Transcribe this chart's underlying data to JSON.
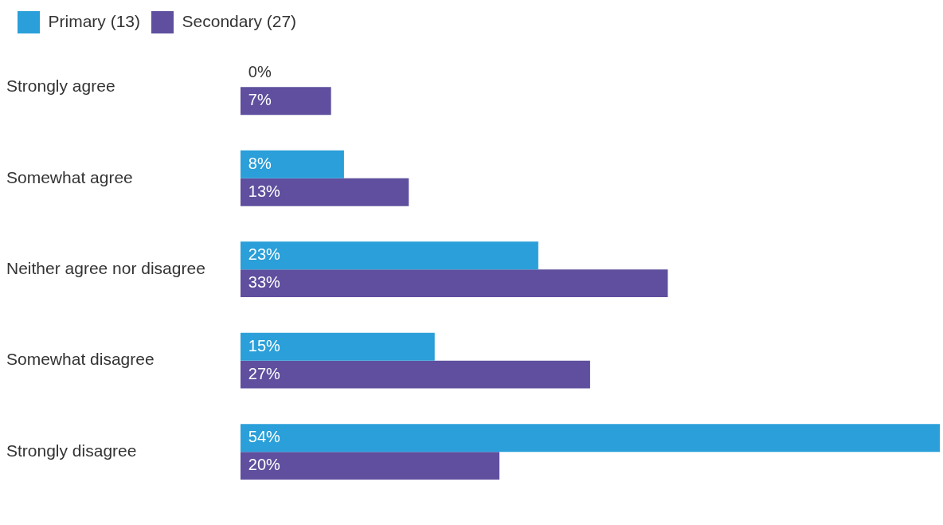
{
  "chart_data": {
    "type": "bar",
    "orientation": "horizontal",
    "categories": [
      "Strongly agree",
      "Somewhat agree",
      "Neither agree nor disagree",
      "Somewhat disagree",
      "Strongly disagree"
    ],
    "series": [
      {
        "name": "Primary (13)",
        "color": "#2a9fd9",
        "values": [
          0,
          8,
          23,
          15,
          54
        ],
        "value_labels": [
          "0%",
          "8%",
          "23%",
          "15%",
          "54%"
        ]
      },
      {
        "name": "Secondary (27)",
        "color": "#5f4f9e",
        "values": [
          7,
          13,
          33,
          27,
          20
        ],
        "value_labels": [
          "7%",
          "13%",
          "33%",
          "27%",
          "20%"
        ]
      }
    ],
    "xlim": [
      0,
      54
    ],
    "grid": false,
    "legend": "top left",
    "tick_labels": "y"
  }
}
